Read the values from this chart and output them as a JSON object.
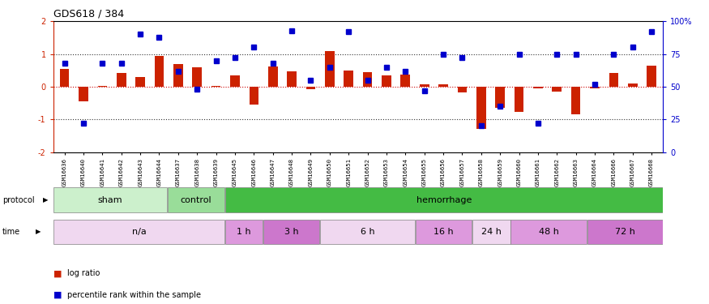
{
  "title": "GDS618 / 384",
  "samples": [
    "GSM16636",
    "GSM16640",
    "GSM16641",
    "GSM16642",
    "GSM16643",
    "GSM16644",
    "GSM16637",
    "GSM16638",
    "GSM16639",
    "GSM16645",
    "GSM16646",
    "GSM16647",
    "GSM16648",
    "GSM16649",
    "GSM16650",
    "GSM16651",
    "GSM16652",
    "GSM16653",
    "GSM16654",
    "GSM16655",
    "GSM16656",
    "GSM16657",
    "GSM16658",
    "GSM16659",
    "GSM16660",
    "GSM16661",
    "GSM16662",
    "GSM16663",
    "GSM16664",
    "GSM16666",
    "GSM16667",
    "GSM16668"
  ],
  "log_ratio": [
    0.55,
    -0.45,
    0.01,
    0.42,
    0.3,
    0.95,
    0.68,
    0.58,
    0.01,
    0.35,
    -0.55,
    0.62,
    0.47,
    -0.08,
    1.1,
    0.5,
    0.45,
    0.35,
    0.38,
    0.06,
    0.06,
    -0.18,
    -1.3,
    -0.65,
    -0.78,
    -0.06,
    -0.15,
    -0.85,
    -0.06,
    0.42,
    0.1,
    0.65
  ],
  "percentile": [
    68,
    22,
    68,
    68,
    90,
    88,
    62,
    48,
    70,
    72,
    80,
    68,
    93,
    55,
    65,
    92,
    55,
    65,
    62,
    47,
    75,
    72,
    20,
    35,
    75,
    22,
    75,
    75,
    52,
    75,
    80,
    92
  ],
  "protocol_groups": [
    {
      "label": "sham",
      "start": 0,
      "end": 5,
      "color": "#ccf0cc"
    },
    {
      "label": "control",
      "start": 6,
      "end": 8,
      "color": "#99dd99"
    },
    {
      "label": "hemorrhage",
      "start": 9,
      "end": 31,
      "color": "#44bb44"
    }
  ],
  "time_groups": [
    {
      "label": "n/a",
      "start": 0,
      "end": 8,
      "color": "#f0d0f0"
    },
    {
      "label": "1 h",
      "start": 9,
      "end": 10,
      "color": "#dd88dd"
    },
    {
      "label": "3 h",
      "start": 11,
      "end": 13,
      "color": "#cc66cc"
    },
    {
      "label": "6 h",
      "start": 14,
      "end": 18,
      "color": "#f0d0f0"
    },
    {
      "label": "16 h",
      "start": 19,
      "end": 21,
      "color": "#dd88dd"
    },
    {
      "label": "24 h",
      "start": 22,
      "end": 23,
      "color": "#f0d0f0"
    },
    {
      "label": "48 h",
      "start": 24,
      "end": 27,
      "color": "#dd88dd"
    },
    {
      "label": "72 h",
      "start": 28,
      "end": 31,
      "color": "#cc66cc"
    }
  ],
  "bar_color": "#cc2200",
  "dot_color": "#0000cc",
  "zero_line_color": "#cc0000",
  "hline_color": "#333333",
  "ylim": [
    -2,
    2
  ],
  "y2lim": [
    0,
    100
  ],
  "bar_width": 0.5
}
